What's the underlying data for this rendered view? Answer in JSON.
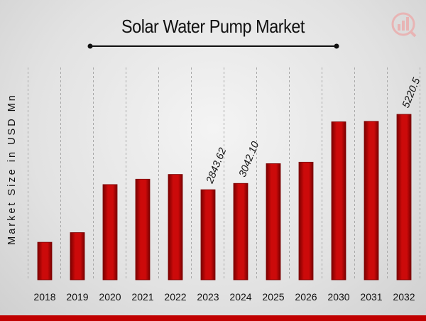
{
  "title": "Solar Water Pump Market",
  "colors": {
    "bar": "#cc0a0a",
    "bar_dark": "#7a0000",
    "footer": "#c00000"
  },
  "chart_data": {
    "type": "bar",
    "title": "Solar Water Pump Market",
    "xlabel": "",
    "ylabel": "Market Size in USD Mn",
    "categories": [
      "2018",
      "2019",
      "2020",
      "2021",
      "2022",
      "2023",
      "2024",
      "2025",
      "2026",
      "2030",
      "2031",
      "2032"
    ],
    "values": [
      1185,
      1490,
      3005,
      3175,
      3325,
      2843.62,
      3042.1,
      3665,
      3712,
      4985,
      5000,
      5220.5
    ],
    "data_labels": [
      "",
      "",
      "",
      "",
      "",
      "2843.62",
      "3042.10",
      "",
      "",
      "",
      "",
      "5220.5"
    ],
    "legend": "none",
    "grid": "vertical dashed"
  }
}
